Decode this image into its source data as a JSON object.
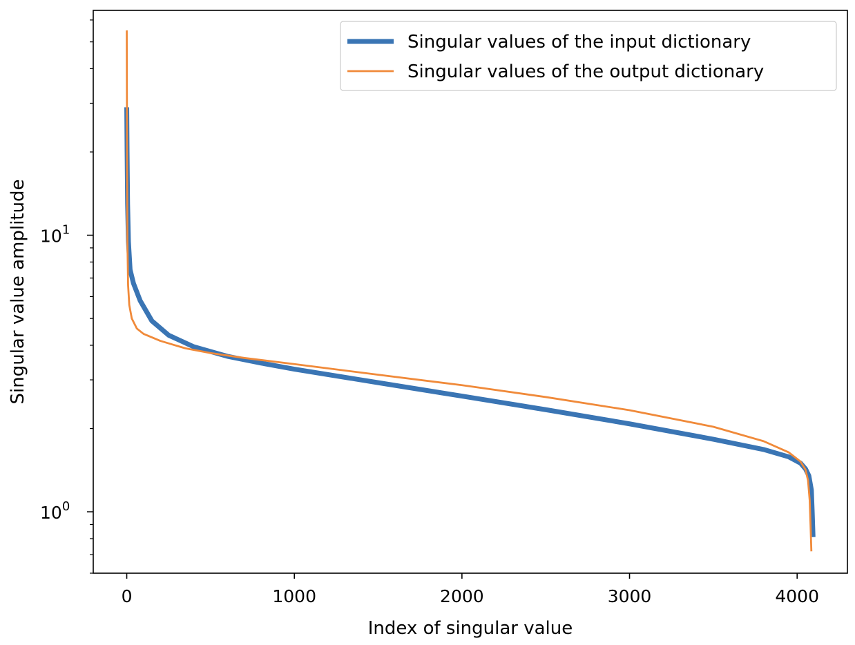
{
  "chart_data": {
    "type": "line",
    "title": "",
    "xlabel": "Index of singular value",
    "ylabel": "Singular value amplitude",
    "xscale": "linear",
    "yscale": "log",
    "xlim": [
      -200,
      4300
    ],
    "ylim": [
      0.6,
      65
    ],
    "xticks": [
      0,
      1000,
      2000,
      3000,
      4000
    ],
    "xtick_labels": [
      "0",
      "1000",
      "2000",
      "3000",
      "4000"
    ],
    "yticks_major": [
      {
        "value": 1,
        "base": "10",
        "exp": "0"
      },
      {
        "value": 10,
        "base": "10",
        "exp": "1"
      }
    ],
    "yticks_minor": [
      0.6,
      0.7,
      0.8,
      0.9,
      2,
      3,
      4,
      5,
      6,
      7,
      8,
      9,
      20,
      30,
      40,
      50,
      60
    ],
    "legend_position": "top-right",
    "series": [
      {
        "name": "Singular values of the input dictionary",
        "color": "#3a75b4",
        "style": "thick",
        "x": [
          0,
          2,
          5,
          10,
          20,
          40,
          80,
          150,
          250,
          400,
          600,
          800,
          1000,
          1500,
          2000,
          2500,
          3000,
          3500,
          3800,
          3950,
          4020,
          4050,
          4070,
          4085,
          4090,
          4095
        ],
        "y": [
          29,
          20,
          13,
          9.5,
          7.5,
          6.7,
          5.8,
          4.9,
          4.35,
          3.95,
          3.65,
          3.45,
          3.28,
          2.93,
          2.62,
          2.34,
          2.08,
          1.83,
          1.68,
          1.58,
          1.5,
          1.43,
          1.35,
          1.2,
          1.0,
          0.81
        ]
      },
      {
        "name": "Singular values of the output dictionary",
        "color": "#f08a3a",
        "style": "thin",
        "x": [
          0,
          1,
          2,
          4,
          8,
          15,
          30,
          60,
          100,
          200,
          350,
          500,
          700,
          1000,
          1500,
          2000,
          2500,
          3000,
          3500,
          3800,
          3950,
          4020,
          4050,
          4065,
          4075,
          4080,
          4085
        ],
        "y": [
          55,
          30,
          17,
          9.5,
          6.6,
          5.6,
          5.0,
          4.6,
          4.4,
          4.15,
          3.9,
          3.75,
          3.6,
          3.42,
          3.13,
          2.87,
          2.6,
          2.33,
          2.03,
          1.8,
          1.64,
          1.52,
          1.42,
          1.3,
          1.1,
          0.9,
          0.72
        ]
      }
    ]
  }
}
